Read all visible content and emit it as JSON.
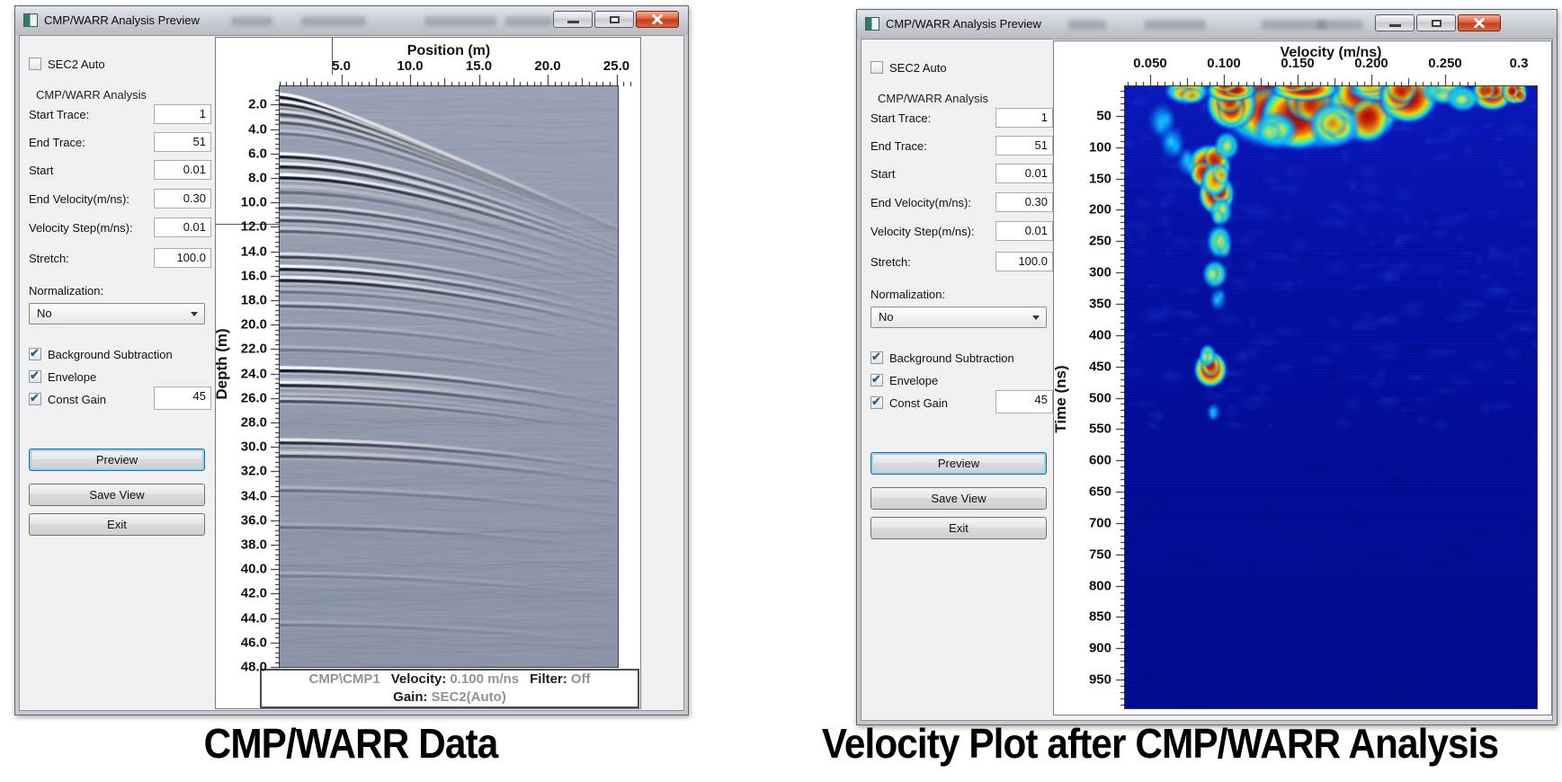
{
  "captions": {
    "left": "CMP/WARR Data",
    "right": "Velocity Plot after CMP/WARR Analysis"
  },
  "windows": [
    {
      "title": "CMP/WARR Analysis Preview",
      "controls": {
        "sec2_auto": {
          "label": "SEC2 Auto",
          "checked": false
        },
        "group_label": "CMP/WARR Analysis",
        "fields": [
          {
            "label": "Start Trace:",
            "value": "1"
          },
          {
            "label": "End Trace:",
            "value": "51"
          },
          {
            "label": "Start",
            "value": "0.01"
          },
          {
            "label": "End Velocity(m/ns):",
            "value": "0.30"
          },
          {
            "label": "Velocity Step(m/ns):",
            "value": "0.01"
          },
          {
            "label": "Stretch:",
            "value": "100.0"
          }
        ],
        "normalization_label": "Normalization:",
        "normalization_value": "No",
        "checkboxes": [
          {
            "label": "Background Subtraction",
            "checked": true
          },
          {
            "label": "Envelope",
            "checked": true
          },
          {
            "label": "Const Gain",
            "checked": true,
            "value": "45"
          }
        ],
        "buttons": {
          "preview": "Preview",
          "save_view": "Save View",
          "exit": "Exit"
        }
      },
      "plot": {
        "x_title": "Position (m)",
        "x_ticks": [
          "5.0",
          "10.0",
          "15.0",
          "20.0",
          "25.0"
        ],
        "y_title": "Depth (m)",
        "y_ticks": [
          "2.0",
          "4.0",
          "6.0",
          "8.0",
          "10.0",
          "12.0",
          "14.0",
          "16.0",
          "18.0",
          "20.0",
          "22.0",
          "24.0",
          "26.0",
          "28.0",
          "30.0",
          "32.0",
          "34.0",
          "36.0",
          "38.0",
          "40.0",
          "42.0",
          "44.0",
          "46.0",
          "48.0"
        ],
        "status": {
          "dataset": "CMP\\CMP1",
          "velocity_label": "Velocity:",
          "velocity_value": "0.100 m/ns",
          "filter_label": "Filter:",
          "filter_value": "Off",
          "gain_label": "Gain:",
          "gain_value": "SEC2(Auto)"
        }
      }
    },
    {
      "title": "CMP/WARR Analysis Preview",
      "controls": {
        "sec2_auto": {
          "label": "SEC2 Auto",
          "checked": false
        },
        "group_label": "CMP/WARR Analysis",
        "fields": [
          {
            "label": "Start Trace:",
            "value": "1"
          },
          {
            "label": "End Trace:",
            "value": "51"
          },
          {
            "label": "Start",
            "value": "0.01"
          },
          {
            "label": "End Velocity(m/ns):",
            "value": "0.30"
          },
          {
            "label": "Velocity Step(m/ns):",
            "value": "0.01"
          },
          {
            "label": "Stretch:",
            "value": "100.0"
          }
        ],
        "normalization_label": "Normalization:",
        "normalization_value": "No",
        "checkboxes": [
          {
            "label": "Background Subtraction",
            "checked": true
          },
          {
            "label": "Envelope",
            "checked": true
          },
          {
            "label": "Const Gain",
            "checked": true,
            "value": "45"
          }
        ],
        "buttons": {
          "preview": "Preview",
          "save_view": "Save View",
          "exit": "Exit"
        }
      },
      "plot": {
        "x_title": "Velocity (m/ns)",
        "x_ticks": [
          "0.050",
          "0.100",
          "0.150",
          "0.200",
          "0.250",
          "0.3"
        ],
        "y_title": "Time (ns)",
        "y_ticks": [
          "50",
          "100",
          "150",
          "200",
          "250",
          "300",
          "350",
          "400",
          "450",
          "500",
          "550",
          "600",
          "650",
          "700",
          "750",
          "800",
          "850",
          "900",
          "950"
        ]
      }
    }
  ],
  "chart_data": [
    {
      "type": "heatmap",
      "panel": "left",
      "title": "CMP/WARR Data",
      "xlabel": "Position (m)",
      "ylabel": "Depth (m)",
      "xlim": [
        0,
        26
      ],
      "ylim": [
        0,
        49
      ],
      "x_ticks": [
        5.0,
        10.0,
        15.0,
        20.0,
        25.0
      ],
      "y_ticks": [
        2,
        4,
        6,
        8,
        10,
        12,
        14,
        16,
        18,
        20,
        22,
        24,
        26,
        28,
        30,
        32,
        34,
        36,
        38,
        40,
        42,
        44,
        46,
        48
      ],
      "colormap": "grayscale wiggle on blue-gray background",
      "description": "CMP/WARR radargram: hyperbolic reflection events with apexes at position 0 dipping down toward larger positions",
      "events": [
        {
          "depth_m": 1.3,
          "amplitude": 1.0
        },
        {
          "depth_m": 1.9,
          "amplitude": 0.9
        },
        {
          "depth_m": 2.7,
          "amplitude": 0.6
        },
        {
          "depth_m": 3.4,
          "amplitude": 0.5
        },
        {
          "depth_m": 4.3,
          "amplitude": 0.35
        },
        {
          "depth_m": 6.2,
          "amplitude": 0.95
        },
        {
          "depth_m": 7.0,
          "amplitude": 0.9
        },
        {
          "depth_m": 7.9,
          "amplitude": 1.0
        },
        {
          "depth_m": 9.1,
          "amplitude": 0.4
        },
        {
          "depth_m": 10.4,
          "amplitude": 0.7
        },
        {
          "depth_m": 11.4,
          "amplitude": 0.6
        },
        {
          "depth_m": 12.3,
          "amplitude": 0.45
        },
        {
          "depth_m": 14.4,
          "amplitude": 0.7
        },
        {
          "depth_m": 15.4,
          "amplitude": 1.0
        },
        {
          "depth_m": 16.3,
          "amplitude": 0.9
        },
        {
          "depth_m": 18.4,
          "amplitude": 0.5
        },
        {
          "depth_m": 20.2,
          "amplitude": 0.3
        },
        {
          "depth_m": 22.0,
          "amplitude": 0.25
        },
        {
          "depth_m": 23.7,
          "amplitude": 1.0
        },
        {
          "depth_m": 24.9,
          "amplitude": 0.95
        },
        {
          "depth_m": 26.2,
          "amplitude": 0.6
        },
        {
          "depth_m": 29.6,
          "amplitude": 0.85
        },
        {
          "depth_m": 30.7,
          "amplitude": 0.6
        },
        {
          "depth_m": 33.5,
          "amplitude": 0.3
        },
        {
          "depth_m": 36.5,
          "amplitude": 0.25
        },
        {
          "depth_m": 40.5,
          "amplitude": 0.2
        },
        {
          "depth_m": 44.5,
          "amplitude": 0.18
        }
      ],
      "annotations": {
        "dataset": "CMP\\CMP1",
        "velocity_mns": 0.1,
        "filter": "Off",
        "gain": "SEC2(Auto)"
      }
    },
    {
      "type": "heatmap",
      "panel": "right",
      "title": "Velocity Plot after CMP/WARR Analysis",
      "xlabel": "Velocity (m/ns)",
      "ylabel": "Time (ns)",
      "xlim": [
        0.01,
        0.3
      ],
      "ylim": [
        0,
        990
      ],
      "x_ticks": [
        0.05,
        0.1,
        0.15,
        0.2,
        0.25,
        0.3
      ],
      "y_ticks": [
        50,
        100,
        150,
        200,
        250,
        300,
        350,
        400,
        450,
        500,
        550,
        600,
        650,
        700,
        750,
        800,
        850,
        900,
        950
      ],
      "colormap": "jet",
      "background_color": "#000d96",
      "hotspots": [
        {
          "velocity_mns": 0.135,
          "time_ns": 22,
          "spread_v": 0.043,
          "spread_t": 37,
          "intensity": 1.0
        },
        {
          "velocity_mns": 0.165,
          "time_ns": 30,
          "spread_v": 0.034,
          "spread_t": 34,
          "intensity": 1.0
        },
        {
          "velocity_mns": 0.15,
          "time_ns": 48,
          "spread_v": 0.027,
          "spread_t": 26,
          "intensity": 0.95
        },
        {
          "velocity_mns": 0.195,
          "time_ns": 30,
          "spread_v": 0.026,
          "spread_t": 29,
          "intensity": 0.95
        },
        {
          "velocity_mns": 0.105,
          "time_ns": 28,
          "spread_v": 0.018,
          "spread_t": 20,
          "intensity": 0.9
        },
        {
          "velocity_mns": 0.225,
          "time_ns": 18,
          "spread_v": 0.021,
          "spread_t": 20,
          "intensity": 0.85
        },
        {
          "velocity_mns": 0.175,
          "time_ns": 62,
          "spread_v": 0.018,
          "spread_t": 17,
          "intensity": 0.8
        },
        {
          "velocity_mns": 0.135,
          "time_ns": 70,
          "spread_v": 0.016,
          "spread_t": 14,
          "intensity": 0.6
        },
        {
          "velocity_mns": 0.075,
          "time_ns": 8,
          "spread_v": 0.016,
          "spread_t": 10,
          "intensity": 0.75
        },
        {
          "velocity_mns": 0.105,
          "time_ns": 6,
          "spread_v": 0.018,
          "spread_t": 9,
          "intensity": 0.85
        },
        {
          "velocity_mns": 0.155,
          "time_ns": 5,
          "spread_v": 0.024,
          "spread_t": 9,
          "intensity": 0.9
        },
        {
          "velocity_mns": 0.205,
          "time_ns": 6,
          "spread_v": 0.022,
          "spread_t": 9,
          "intensity": 0.7
        },
        {
          "velocity_mns": 0.25,
          "time_ns": 8,
          "spread_v": 0.018,
          "spread_t": 10,
          "intensity": 0.65
        },
        {
          "velocity_mns": 0.282,
          "time_ns": 12,
          "spread_v": 0.015,
          "spread_t": 13,
          "intensity": 0.9
        },
        {
          "velocity_mns": 0.297,
          "time_ns": 8,
          "spread_v": 0.009,
          "spread_t": 10,
          "intensity": 0.95
        },
        {
          "velocity_mns": 0.262,
          "time_ns": 20,
          "spread_v": 0.012,
          "spread_t": 10,
          "intensity": 0.5
        },
        {
          "velocity_mns": 0.058,
          "time_ns": 55,
          "spread_v": 0.01,
          "spread_t": 14,
          "intensity": 0.45
        },
        {
          "velocity_mns": 0.065,
          "time_ns": 90,
          "spread_v": 0.009,
          "spread_t": 13,
          "intensity": 0.4
        },
        {
          "velocity_mns": 0.075,
          "time_ns": 120,
          "spread_v": 0.007,
          "spread_t": 11,
          "intensity": 0.35
        },
        {
          "velocity_mns": 0.102,
          "time_ns": 95,
          "spread_v": 0.009,
          "spread_t": 11,
          "intensity": 0.5
        },
        {
          "velocity_mns": 0.09,
          "time_ns": 128,
          "spread_v": 0.016,
          "spread_t": 17,
          "intensity": 0.98
        },
        {
          "velocity_mns": 0.094,
          "time_ns": 150,
          "spread_v": 0.01,
          "spread_t": 13,
          "intensity": 0.7
        },
        {
          "velocity_mns": 0.095,
          "time_ns": 172,
          "spread_v": 0.013,
          "spread_t": 16,
          "intensity": 0.95
        },
        {
          "velocity_mns": 0.098,
          "time_ns": 200,
          "spread_v": 0.008,
          "spread_t": 11,
          "intensity": 0.55
        },
        {
          "velocity_mns": 0.097,
          "time_ns": 248,
          "spread_v": 0.009,
          "spread_t": 13,
          "intensity": 0.65
        },
        {
          "velocity_mns": 0.094,
          "time_ns": 300,
          "spread_v": 0.009,
          "spread_t": 11,
          "intensity": 0.6
        },
        {
          "velocity_mns": 0.096,
          "time_ns": 340,
          "spread_v": 0.006,
          "spread_t": 9,
          "intensity": 0.4
        },
        {
          "velocity_mns": 0.091,
          "time_ns": 452,
          "spread_v": 0.012,
          "spread_t": 14,
          "intensity": 0.9
        },
        {
          "velocity_mns": 0.089,
          "time_ns": 430,
          "spread_v": 0.006,
          "spread_t": 9,
          "intensity": 0.5
        },
        {
          "velocity_mns": 0.093,
          "time_ns": 520,
          "spread_v": 0.005,
          "spread_t": 7,
          "intensity": 0.3
        }
      ]
    }
  ]
}
